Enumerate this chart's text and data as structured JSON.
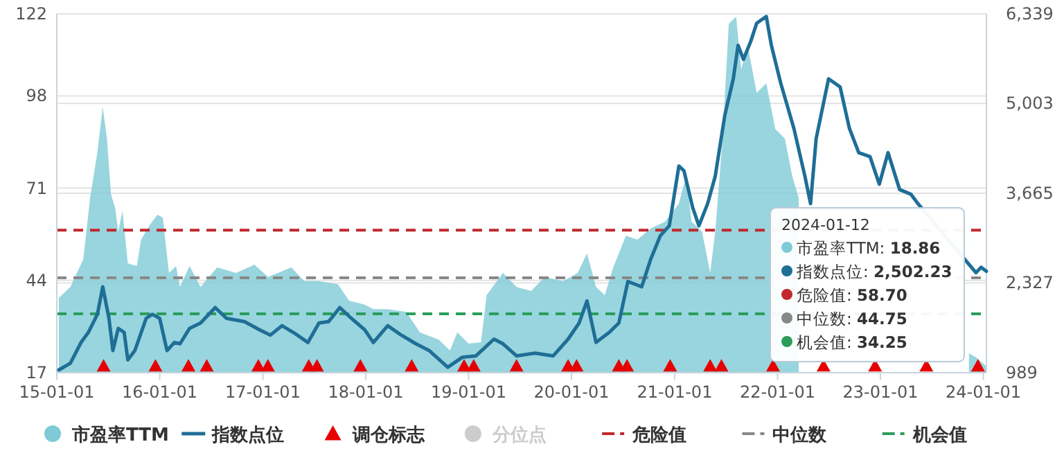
{
  "chart_data": {
    "type": "area",
    "xlim": [
      "2015-01-01",
      "2024-01-12"
    ],
    "xticks": [
      {
        "value": "2015-01-01",
        "label": "15-01-01"
      },
      {
        "value": "2016-01-01",
        "label": "16-01-01"
      },
      {
        "value": "2017-01-01",
        "label": "17-01-01"
      },
      {
        "value": "2018-01-01",
        "label": "18-01-01"
      },
      {
        "value": "2019-01-01",
        "label": "19-01-01"
      },
      {
        "value": "2020-01-01",
        "label": "20-01-01"
      },
      {
        "value": "2021-01-01",
        "label": "21-01-01"
      },
      {
        "value": "2022-01-01",
        "label": "22-01-01"
      },
      {
        "value": "2023-01-01",
        "label": "23-01-01"
      },
      {
        "value": "2024-01-01",
        "label": "24-01-01"
      }
    ],
    "ylim": [
      17,
      122
    ],
    "yticks": [
      17,
      44,
      71,
      98,
      122
    ],
    "y2lim": [
      989,
      6339
    ],
    "y2ticks": [
      {
        "value": 989,
        "label": "989"
      },
      {
        "value": 2327,
        "label": "2,327"
      },
      {
        "value": 3665,
        "label": "3,665"
      },
      {
        "value": 5003,
        "label": "5,003"
      },
      {
        "value": 6339,
        "label": "6,339"
      }
    ],
    "grid": "y",
    "legend": "bottom",
    "series": [
      {
        "name": "市盈率TTM",
        "color": "#7ecbd6",
        "x": [
          "2015-01-08",
          "2015-02-18",
          "2015-04-05",
          "2015-04-29",
          "2015-05-25",
          "2015-06-13",
          "2015-06-28",
          "2015-07-12",
          "2015-07-27",
          "2015-08-07",
          "2015-08-22",
          "2015-09-10",
          "2015-10-12",
          "2015-10-27",
          "2015-11-28",
          "2015-12-24",
          "2016-01-12",
          "2016-02-03",
          "2016-02-28",
          "2016-03-13",
          "2016-04-16",
          "2016-05-25",
          "2016-07-23",
          "2016-09-28",
          "2016-12-02",
          "2017-01-19",
          "2017-04-12",
          "2017-05-28",
          "2017-07-19",
          "2017-09-24",
          "2017-11-03",
          "2017-12-28",
          "2018-01-28",
          "2018-03-20",
          "2018-05-25",
          "2018-07-12",
          "2018-09-17",
          "2018-10-27",
          "2018-11-22",
          "2019-01-01",
          "2019-02-14",
          "2019-03-06",
          "2019-05-03",
          "2019-06-20",
          "2019-08-11",
          "2019-09-28",
          "2019-12-02",
          "2020-01-23",
          "2020-02-25",
          "2020-03-28",
          "2020-04-28",
          "2020-05-28",
          "2020-07-12",
          "2020-08-22",
          "2020-10-08",
          "2020-11-28",
          "2021-01-16",
          "2021-02-11",
          "2021-03-02",
          "2021-04-08",
          "2021-05-07",
          "2021-05-25",
          "2021-06-20",
          "2021-07-12",
          "2021-08-07",
          "2021-08-25",
          "2021-09-17",
          "2021-10-19",
          "2021-11-22",
          "2021-12-24",
          "2022-01-27",
          "2022-02-22",
          "2022-03-17",
          "2022-04-05",
          "2023-01-01",
          "2023-11-11",
          "2023-12-06",
          "2024-01-12"
        ],
        "values": [
          38.9,
          42.1,
          50.2,
          68.1,
          81.5,
          94.8,
          85.5,
          69.3,
          65.2,
          58.3,
          64.4,
          49.0,
          48.2,
          55.9,
          60.4,
          63.2,
          62.4,
          46.2,
          48.2,
          42.1,
          48.2,
          42.1,
          47.8,
          46.2,
          48.6,
          45.0,
          47.8,
          43.8,
          43.8,
          42.9,
          38.1,
          36.9,
          35.6,
          35.6,
          34.8,
          28.8,
          26.7,
          23.5,
          28.8,
          25.5,
          25.9,
          39.7,
          46.2,
          42.1,
          40.9,
          45.0,
          43.8,
          46.2,
          51.9,
          42.1,
          39.7,
          47.8,
          57.1,
          55.9,
          59.2,
          61.2,
          66.5,
          74.6,
          61.2,
          58.3,
          46.2,
          58.3,
          85.5,
          119.1,
          121.2,
          105.8,
          112.7,
          98.9,
          101.7,
          88.3,
          85.5,
          74.6,
          68.1,
          null,
          null,
          22.7,
          21.5,
          18.86
        ]
      },
      {
        "name": "指数点位",
        "type": "line",
        "axis": "y2",
        "color": "#1f6e96",
        "x": [
          "2015-01-08",
          "2015-02-18",
          "2015-03-28",
          "2015-04-23",
          "2015-05-25",
          "2015-06-13",
          "2015-07-05",
          "2015-07-19",
          "2015-08-07",
          "2015-08-28",
          "2015-09-10",
          "2015-10-05",
          "2015-11-14",
          "2015-12-06",
          "2016-01-01",
          "2016-01-27",
          "2016-02-22",
          "2016-03-13",
          "2016-04-16",
          "2016-05-25",
          "2016-07-16",
          "2016-08-25",
          "2016-10-28",
          "2016-12-20",
          "2017-01-28",
          "2017-03-10",
          "2017-04-19",
          "2017-06-10",
          "2017-07-19",
          "2017-08-22",
          "2017-10-01",
          "2017-11-11",
          "2017-12-28",
          "2018-01-28",
          "2018-03-20",
          "2018-05-07",
          "2018-06-28",
          "2018-08-14",
          "2018-10-19",
          "2018-12-10",
          "2019-01-27",
          "2019-04-01",
          "2019-05-03",
          "2019-06-20",
          "2019-08-25",
          "2019-10-28",
          "2019-12-20",
          "2020-01-28",
          "2020-02-25",
          "2020-03-28",
          "2020-05-14",
          "2020-06-17",
          "2020-07-19",
          "2020-09-06",
          "2020-10-08",
          "2020-11-11",
          "2020-12-13",
          "2021-01-16",
          "2021-02-03",
          "2021-03-06",
          "2021-03-28",
          "2021-04-28",
          "2021-05-25",
          "2021-06-28",
          "2021-07-28",
          "2021-08-14",
          "2021-09-02",
          "2021-09-28",
          "2021-10-19",
          "2021-11-22",
          "2021-12-10",
          "2022-01-12",
          "2022-02-28",
          "2022-04-08",
          "2022-04-28",
          "2022-05-18",
          "2022-07-01",
          "2022-08-11",
          "2022-09-13",
          "2022-10-16",
          "2022-11-25",
          "2022-12-28",
          "2023-01-28",
          "2023-03-10",
          "2023-04-19",
          "2023-05-14",
          "2023-12-06",
          "2023-12-24",
          "2024-01-12"
        ],
        "values": [
          1030,
          1130,
          1440,
          1590,
          1860,
          2270,
          1800,
          1320,
          1650,
          1590,
          1180,
          1320,
          1800,
          1860,
          1800,
          1320,
          1440,
          1420,
          1650,
          1730,
          1960,
          1800,
          1750,
          1630,
          1550,
          1690,
          1590,
          1440,
          1730,
          1750,
          1960,
          1800,
          1630,
          1440,
          1690,
          1550,
          1420,
          1320,
          1070,
          1220,
          1240,
          1490,
          1420,
          1240,
          1280,
          1240,
          1490,
          1730,
          2060,
          1440,
          1590,
          1730,
          2350,
          2270,
          2680,
          3030,
          3180,
          4070,
          4000,
          3450,
          3180,
          3510,
          3920,
          4830,
          5370,
          5870,
          5660,
          5930,
          6200,
          6300,
          5870,
          5310,
          4630,
          3920,
          3510,
          4480,
          5370,
          5250,
          4630,
          4270,
          4210,
          3800,
          4270,
          3720,
          3650,
          3510,
          2480,
          2560,
          2502.23
        ]
      },
      {
        "name": "调仓标志",
        "type": "scatter",
        "marker": "triangle",
        "color": "#e60000",
        "x": [
          "2015-06-16",
          "2015-12-17",
          "2016-04-12",
          "2016-06-16",
          "2016-12-16",
          "2017-01-19",
          "2017-06-13",
          "2017-07-12",
          "2017-12-13",
          "2018-06-13",
          "2018-12-16",
          "2019-01-19",
          "2019-06-20",
          "2019-12-20",
          "2020-01-19",
          "2020-06-17",
          "2020-07-16",
          "2020-12-16",
          "2021-05-07",
          "2021-06-16",
          "2021-12-16",
          "2022-06-13",
          "2022-12-13",
          "2023-06-13",
          "2023-12-13"
        ],
        "values": [
          19,
          19,
          19,
          19,
          19,
          19,
          19,
          19,
          19,
          19,
          19,
          19,
          19,
          19,
          19,
          19,
          19,
          19,
          19,
          19,
          19,
          19,
          19,
          19,
          19
        ]
      },
      {
        "name": "分位点",
        "type": "scatter",
        "marker": "circle",
        "color": "#cccccc"
      }
    ],
    "ref_lines": [
      {
        "axis": "y",
        "value": 58.7,
        "label": "危险值",
        "color": "#c0282d",
        "line_style": "dashed"
      },
      {
        "axis": "y",
        "value": 44.75,
        "label": "中位数",
        "color": "#888888",
        "line_style": "dashed"
      },
      {
        "axis": "y",
        "value": 34.25,
        "label": "机会值",
        "color": "#2a9d5c",
        "line_style": "dashed"
      }
    ],
    "annotations": [
      "2024-01-12",
      "市盈率TTM: **18.86**",
      "指数点位: **2,502.23**",
      "危险值: **58.70**",
      "中位数: **44.75**",
      "机会值: **34.25**"
    ]
  }
}
